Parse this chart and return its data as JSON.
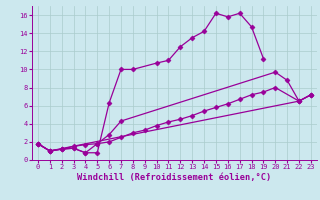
{
  "xlabel": "Windchill (Refroidissement éolien,°C)",
  "bg_color": "#cce8ee",
  "line_color": "#990099",
  "marker": "D",
  "markersize": 2.5,
  "linewidth": 0.9,
  "xlim": [
    -0.5,
    23.5
  ],
  "ylim": [
    0,
    17
  ],
  "xticks": [
    0,
    1,
    2,
    3,
    4,
    5,
    6,
    7,
    8,
    9,
    10,
    11,
    12,
    13,
    14,
    15,
    16,
    17,
    18,
    19,
    20,
    21,
    22,
    23
  ],
  "yticks": [
    0,
    2,
    4,
    6,
    8,
    10,
    12,
    14,
    16
  ],
  "lines": [
    {
      "x": [
        0,
        1,
        2,
        3,
        4,
        5,
        6,
        7,
        8,
        10,
        11,
        12,
        13,
        14,
        15,
        16,
        17,
        18,
        19
      ],
      "y": [
        1.8,
        1.0,
        1.2,
        1.3,
        0.8,
        0.8,
        6.3,
        10.0,
        10.0,
        10.7,
        11.0,
        12.5,
        13.5,
        14.2,
        16.2,
        15.8,
        16.2,
        14.7,
        11.2
      ]
    },
    {
      "x": [
        0,
        1,
        2,
        3,
        4,
        5,
        6,
        7,
        20,
        21,
        22,
        23
      ],
      "y": [
        1.8,
        1.0,
        1.2,
        1.3,
        0.8,
        1.8,
        2.8,
        4.3,
        9.7,
        8.8,
        6.5,
        7.2
      ]
    },
    {
      "x": [
        0,
        1,
        2,
        3,
        4,
        5,
        6,
        7,
        8,
        9,
        10,
        11,
        12,
        13,
        14,
        15,
        16,
        17,
        18,
        19,
        20,
        22,
        23
      ],
      "y": [
        1.8,
        1.0,
        1.2,
        1.5,
        1.7,
        1.8,
        2.0,
        2.5,
        3.0,
        3.3,
        3.8,
        4.2,
        4.5,
        4.9,
        5.4,
        5.8,
        6.2,
        6.7,
        7.2,
        7.5,
        8.0,
        6.5,
        7.2
      ]
    },
    {
      "x": [
        0,
        1,
        22,
        23
      ],
      "y": [
        1.8,
        1.0,
        6.5,
        7.2
      ]
    }
  ],
  "grid_color": "#aacccc",
  "tick_fontsize": 5.0,
  "label_fontsize": 6.2,
  "grid_linewidth": 0.5
}
